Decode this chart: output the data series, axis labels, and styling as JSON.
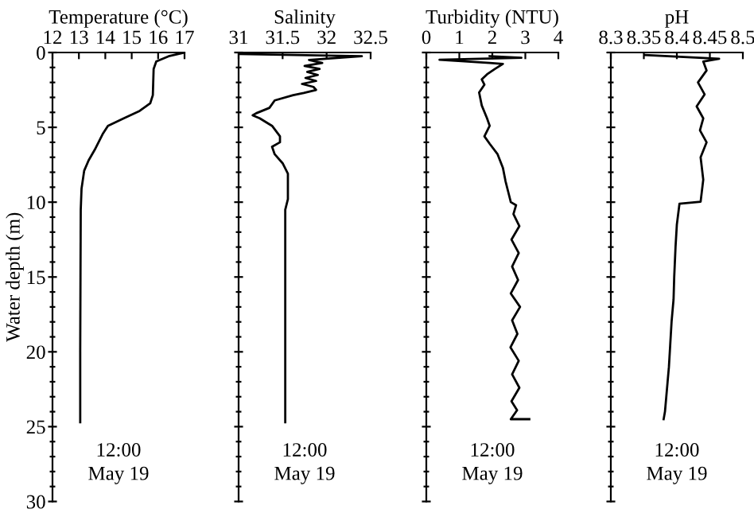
{
  "chart_data": [
    {
      "type": "line",
      "xlabel": "Temperature (°C)",
      "ylabel": "Water depth (m)",
      "xlim": [
        12,
        17
      ],
      "xticks": [
        12,
        13,
        14,
        15,
        16,
        17
      ],
      "ylim": [
        30,
        0
      ],
      "yticks": [
        0,
        {
          "value": 1,
          "label": null
        },
        {
          "value": 2,
          "label": null
        },
        {
          "value": 3,
          "label": null
        },
        {
          "value": 4,
          "label": null
        },
        5,
        {
          "value": 6,
          "label": null
        },
        {
          "value": 7,
          "label": null
        },
        {
          "value": 8,
          "label": null
        },
        {
          "value": 9,
          "label": null
        },
        10,
        {
          "value": 11,
          "label": null
        },
        {
          "value": 12,
          "label": null
        },
        {
          "value": 13,
          "label": null
        },
        {
          "value": 14,
          "label": null
        },
        15,
        {
          "value": 16,
          "label": null
        },
        {
          "value": 17,
          "label": null
        },
        {
          "value": 18,
          "label": null
        },
        {
          "value": 19,
          "label": null
        },
        20,
        {
          "value": 21,
          "label": null
        },
        {
          "value": 22,
          "label": null
        },
        {
          "value": 23,
          "label": null
        },
        {
          "value": 24,
          "label": null
        },
        25,
        {
          "value": 26,
          "label": null
        },
        {
          "value": 27,
          "label": null
        },
        {
          "value": 28,
          "label": null
        },
        {
          "value": 29,
          "label": null
        },
        30
      ],
      "series": [
        {
          "color": "#000000",
          "x": [
            17,
            16.4,
            15.93,
            15.83,
            15.8,
            15.7,
            15.3,
            14.7,
            14.1,
            13.9,
            13.6,
            13.37,
            13.2,
            13.1,
            13.07,
            13.06,
            13.05,
            13.05
          ],
          "values": [
            0,
            0.25,
            0.6,
            1.1,
            2.85,
            3.4,
            3.9,
            4.4,
            4.9,
            5.45,
            6.5,
            7.2,
            7.9,
            9.1,
            10.5,
            15,
            20,
            24.7
          ]
        }
      ],
      "annotations": [
        "12:00\nMay 19"
      ]
    },
    {
      "type": "line",
      "xlabel": "Salinity",
      "xlim": [
        31,
        32.5
      ],
      "xticks": [
        31,
        31.5,
        32,
        32.5
      ],
      "ylim": [
        30,
        0
      ],
      "tick_labels": "x",
      "yticks": [
        0,
        {
          "value": 1,
          "label": null
        },
        {
          "value": 2,
          "label": null
        },
        {
          "value": 3,
          "label": null
        },
        {
          "value": 4,
          "label": null
        },
        5,
        {
          "value": 6,
          "label": null
        },
        {
          "value": 7,
          "label": null
        },
        {
          "value": 8,
          "label": null
        },
        {
          "value": 9,
          "label": null
        },
        10,
        {
          "value": 11,
          "label": null
        },
        {
          "value": 12,
          "label": null
        },
        {
          "value": 13,
          "label": null
        },
        {
          "value": 14,
          "label": null
        },
        15,
        {
          "value": 16,
          "label": null
        },
        {
          "value": 17,
          "label": null
        },
        {
          "value": 18,
          "label": null
        },
        {
          "value": 19,
          "label": null
        },
        20,
        {
          "value": 21,
          "label": null
        },
        {
          "value": 22,
          "label": null
        },
        {
          "value": 23,
          "label": null
        },
        {
          "value": 24,
          "label": null
        },
        25,
        {
          "value": 26,
          "label": null
        },
        {
          "value": 27,
          "label": null
        },
        {
          "value": 28,
          "label": null
        },
        {
          "value": 29,
          "label": null
        },
        30
      ],
      "series": [
        {
          "color": "#000000",
          "x": [
            31,
            32.4,
            31.8,
            31.95,
            31.75,
            31.92,
            31.78,
            31.9,
            31.76,
            31.88,
            31.72,
            31.85,
            31.88,
            31.74,
            31.62,
            31.41,
            31.35,
            31.2,
            31.16,
            31.24,
            31.38,
            31.47,
            31.47,
            31.38,
            31.41,
            31.5,
            31.56,
            31.56,
            31.53,
            31.53,
            31.53
          ],
          "values": [
            0.1,
            0.25,
            0.5,
            0.7,
            0.9,
            1.1,
            1.3,
            1.5,
            1.7,
            1.9,
            2.1,
            2.3,
            2.5,
            2.7,
            2.85,
            3.2,
            3.7,
            4.06,
            4.2,
            4.4,
            4.9,
            5.6,
            6.0,
            6.3,
            6.8,
            7.4,
            8.1,
            9.8,
            10.5,
            13.3,
            24.7
          ]
        }
      ],
      "annotations": [
        "12:00\nMay 19"
      ]
    },
    {
      "type": "line",
      "xlabel": "Turbidity (NTU)",
      "xlim": [
        0,
        4
      ],
      "xticks": [
        0,
        1,
        2,
        3,
        4
      ],
      "ylim": [
        30,
        0
      ],
      "tick_labels": "x",
      "yticks": [
        0,
        {
          "value": 1,
          "label": null
        },
        {
          "value": 2,
          "label": null
        },
        {
          "value": 3,
          "label": null
        },
        {
          "value": 4,
          "label": null
        },
        5,
        {
          "value": 6,
          "label": null
        },
        {
          "value": 7,
          "label": null
        },
        {
          "value": 8,
          "label": null
        },
        {
          "value": 9,
          "label": null
        },
        10,
        {
          "value": 11,
          "label": null
        },
        {
          "value": 12,
          "label": null
        },
        {
          "value": 13,
          "label": null
        },
        {
          "value": 14,
          "label": null
        },
        15,
        {
          "value": 16,
          "label": null
        },
        {
          "value": 17,
          "label": null
        },
        {
          "value": 18,
          "label": null
        },
        {
          "value": 19,
          "label": null
        },
        20,
        {
          "value": 21,
          "label": null
        },
        {
          "value": 22,
          "label": null
        },
        {
          "value": 23,
          "label": null
        },
        {
          "value": 24,
          "label": null
        },
        25,
        {
          "value": 26,
          "label": null
        },
        {
          "value": 27,
          "label": null
        },
        {
          "value": 28,
          "label": null
        },
        {
          "value": 29,
          "label": null
        },
        30
      ],
      "series": [
        {
          "color": "#000000",
          "x": [
            1.92,
            2.88,
            0.4,
            1.92,
            2.32,
            2.08,
            1.84,
            1.68,
            1.76,
            1.6,
            1.68,
            1.84,
            1.92,
            1.76,
            1.92,
            2.16,
            2.32,
            2.4,
            2.48,
            2.56,
            2.72,
            2.64,
            2.82,
            2.58,
            2.8,
            2.6,
            2.78,
            2.56,
            2.84,
            2.6,
            2.76,
            2.55,
            2.8,
            2.6,
            2.82,
            2.58,
            2.75,
            2.56,
            3.12
          ],
          "values": [
            0.24,
            0.35,
            0.49,
            0.7,
            0.76,
            1.1,
            1.46,
            1.8,
            2.15,
            2.67,
            3.54,
            4.4,
            4.9,
            5.6,
            6.1,
            6.8,
            7.7,
            8.6,
            9.3,
            10.0,
            10.2,
            10.8,
            11.6,
            12.5,
            13.4,
            14.3,
            15.2,
            16.1,
            17.0,
            17.9,
            18.8,
            19.7,
            20.6,
            21.5,
            22.4,
            23.3,
            23.9,
            24.5,
            24.5
          ]
        }
      ],
      "annotations": [
        "12:00\nMay 19"
      ]
    },
    {
      "type": "line",
      "xlabel": "pH",
      "xlim": [
        8.3,
        8.5
      ],
      "xticks": [
        8.3,
        8.35,
        8.4,
        8.45,
        8.5
      ],
      "ylim": [
        30,
        0
      ],
      "tick_labels": "x",
      "yticks": [
        0,
        {
          "value": 1,
          "label": null
        },
        {
          "value": 2,
          "label": null
        },
        {
          "value": 3,
          "label": null
        },
        {
          "value": 4,
          "label": null
        },
        5,
        {
          "value": 6,
          "label": null
        },
        {
          "value": 7,
          "label": null
        },
        {
          "value": 8,
          "label": null
        },
        {
          "value": 9,
          "label": null
        },
        10,
        {
          "value": 11,
          "label": null
        },
        {
          "value": 12,
          "label": null
        },
        {
          "value": 13,
          "label": null
        },
        {
          "value": 14,
          "label": null
        },
        15,
        {
          "value": 16,
          "label": null
        },
        {
          "value": 17,
          "label": null
        },
        {
          "value": 18,
          "label": null
        },
        {
          "value": 19,
          "label": null
        },
        20,
        {
          "value": 21,
          "label": null
        },
        {
          "value": 22,
          "label": null
        },
        {
          "value": 23,
          "label": null
        },
        {
          "value": 24,
          "label": null
        },
        25,
        {
          "value": 26,
          "label": null
        },
        {
          "value": 27,
          "label": null
        },
        {
          "value": 28,
          "label": null
        },
        {
          "value": 29,
          "label": null
        },
        30
      ],
      "series": [
        {
          "color": "#000000",
          "x": [
            8.352,
            8.464,
            8.44,
            8.445,
            8.432,
            8.442,
            8.43,
            8.44,
            8.435,
            8.445,
            8.436,
            8.44,
            8.436,
            8.404,
            8.4,
            8.398,
            8.396,
            8.395,
            8.392,
            8.39,
            8.388,
            8.386,
            8.384,
            8.382,
            8.38
          ],
          "values": [
            0.17,
            0.42,
            0.6,
            1.2,
            2.0,
            2.8,
            3.6,
            4.4,
            5.2,
            6.0,
            7.0,
            8.5,
            9.97,
            10.1,
            11.5,
            13,
            15,
            16.5,
            18,
            19.5,
            21,
            22,
            23,
            24,
            24.5
          ]
        }
      ],
      "annotations": [
        "12:00\nMay 19"
      ]
    }
  ]
}
